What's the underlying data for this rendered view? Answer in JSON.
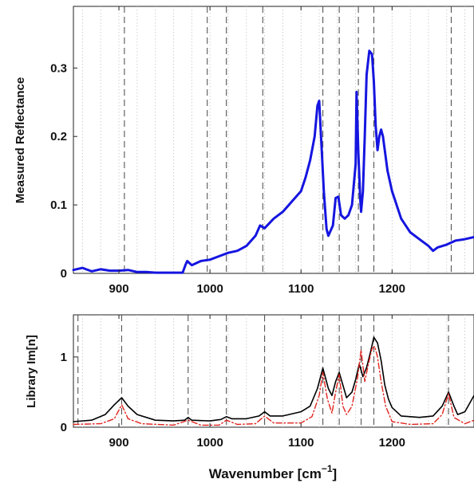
{
  "chart_data": [
    {
      "type": "line",
      "ylabel": "Measured Reflectance",
      "xlim": [
        850,
        1290
      ],
      "ylim": [
        0,
        0.39
      ],
      "xticks": [
        900,
        1000,
        1100,
        1200
      ],
      "xtick_labels": [
        "900",
        "1000",
        "1100",
        "1200"
      ],
      "yticks": [
        0,
        0.1,
        0.2,
        0.3
      ],
      "ytick_labels": [
        "0",
        "0.1",
        "0.2",
        "0.3"
      ],
      "grid": "vertical dotted",
      "line_color": "#1515e0",
      "marker_lines_x": [
        906,
        997,
        1018,
        1058,
        1124,
        1142,
        1163,
        1180,
        1265
      ],
      "series": [
        {
          "x": [
            850,
            860,
            870,
            880,
            890,
            900,
            910,
            920,
            930,
            940,
            950,
            960,
            970,
            973,
            975,
            980,
            990,
            1000,
            1010,
            1020,
            1030,
            1040,
            1050,
            1055,
            1060,
            1070,
            1080,
            1090,
            1100,
            1105,
            1110,
            1115,
            1118,
            1120,
            1122,
            1125,
            1128,
            1130,
            1135,
            1138,
            1141,
            1144,
            1148,
            1152,
            1156,
            1160,
            1161,
            1163,
            1165,
            1166,
            1168,
            1170,
            1172,
            1175,
            1178,
            1180,
            1182,
            1184,
            1186,
            1188,
            1190,
            1195,
            1200,
            1210,
            1220,
            1230,
            1240,
            1245,
            1250,
            1260,
            1270,
            1280,
            1290
          ],
          "y": [
            0.005,
            0.008,
            0.003,
            0.006,
            0.004,
            0.004,
            0.005,
            0.002,
            0.002,
            0.001,
            0.001,
            0.001,
            0.001,
            0.012,
            0.018,
            0.012,
            0.018,
            0.02,
            0.025,
            0.03,
            0.033,
            0.04,
            0.055,
            0.07,
            0.066,
            0.08,
            0.09,
            0.105,
            0.12,
            0.14,
            0.165,
            0.2,
            0.245,
            0.252,
            0.2,
            0.12,
            0.065,
            0.055,
            0.07,
            0.11,
            0.112,
            0.085,
            0.08,
            0.085,
            0.1,
            0.16,
            0.265,
            0.175,
            0.11,
            0.09,
            0.12,
            0.2,
            0.29,
            0.325,
            0.32,
            0.28,
            0.215,
            0.18,
            0.2,
            0.21,
            0.2,
            0.15,
            0.12,
            0.08,
            0.06,
            0.05,
            0.04,
            0.033,
            0.038,
            0.042,
            0.048,
            0.05,
            0.053
          ]
        }
      ]
    },
    {
      "type": "line",
      "xlabel": "Wavenumber [cm",
      "xlabel_sup": "−1",
      "xlabel_tail": "]",
      "ylabel": "Library Im[n]",
      "xlim": [
        850,
        1290
      ],
      "ylim": [
        0,
        1.6
      ],
      "xticks": [
        900,
        1000,
        1100,
        1200
      ],
      "xtick_labels": [
        "900",
        "1000",
        "1100",
        "1200"
      ],
      "yticks": [
        0,
        1
      ],
      "ytick_labels": [
        "0",
        "1"
      ],
      "grid": "vertical dotted",
      "marker_lines_x": [
        855,
        903,
        976,
        1018,
        1060,
        1124,
        1142,
        1166,
        1180,
        1262
      ],
      "series": [
        {
          "style": "solid",
          "color": "#000000",
          "x": [
            850,
            870,
            885,
            895,
            903,
            910,
            920,
            940,
            960,
            972,
            976,
            980,
            1000,
            1012,
            1018,
            1024,
            1040,
            1054,
            1060,
            1066,
            1080,
            1100,
            1110,
            1118,
            1124,
            1130,
            1134,
            1138,
            1142,
            1146,
            1150,
            1156,
            1160,
            1164,
            1168,
            1172,
            1176,
            1180,
            1184,
            1188,
            1192,
            1196,
            1200,
            1210,
            1230,
            1245,
            1255,
            1262,
            1268,
            1272,
            1280,
            1290
          ],
          "y": [
            0.08,
            0.1,
            0.18,
            0.32,
            0.42,
            0.3,
            0.18,
            0.1,
            0.09,
            0.1,
            0.14,
            0.1,
            0.09,
            0.11,
            0.15,
            0.12,
            0.12,
            0.16,
            0.22,
            0.16,
            0.16,
            0.22,
            0.3,
            0.55,
            0.84,
            0.55,
            0.45,
            0.65,
            0.78,
            0.6,
            0.42,
            0.5,
            0.68,
            0.9,
            0.72,
            0.85,
            1.05,
            1.28,
            1.2,
            0.95,
            0.6,
            0.4,
            0.28,
            0.16,
            0.14,
            0.16,
            0.3,
            0.5,
            0.3,
            0.18,
            0.22,
            0.45
          ]
        },
        {
          "style": "dash-dot",
          "color": "#e0241e",
          "x": [
            850,
            880,
            895,
            903,
            910,
            925,
            960,
            976,
            990,
            1010,
            1018,
            1030,
            1050,
            1060,
            1070,
            1100,
            1112,
            1120,
            1124,
            1129,
            1134,
            1138,
            1142,
            1146,
            1150,
            1156,
            1162,
            1166,
            1170,
            1174,
            1178,
            1181,
            1184,
            1188,
            1193,
            1200,
            1220,
            1245,
            1255,
            1262,
            1268,
            1280,
            1290
          ],
          "y": [
            0.04,
            0.05,
            0.12,
            0.32,
            0.12,
            0.05,
            0.03,
            0.1,
            0.03,
            0.03,
            0.1,
            0.04,
            0.05,
            0.16,
            0.06,
            0.06,
            0.15,
            0.45,
            0.78,
            0.4,
            0.2,
            0.5,
            0.75,
            0.3,
            0.18,
            0.3,
            0.7,
            1.1,
            0.65,
            0.9,
            1.12,
            1.15,
            1.0,
            0.65,
            0.3,
            0.08,
            0.04,
            0.05,
            0.18,
            0.48,
            0.14,
            0.05,
            0.1
          ]
        }
      ]
    }
  ]
}
